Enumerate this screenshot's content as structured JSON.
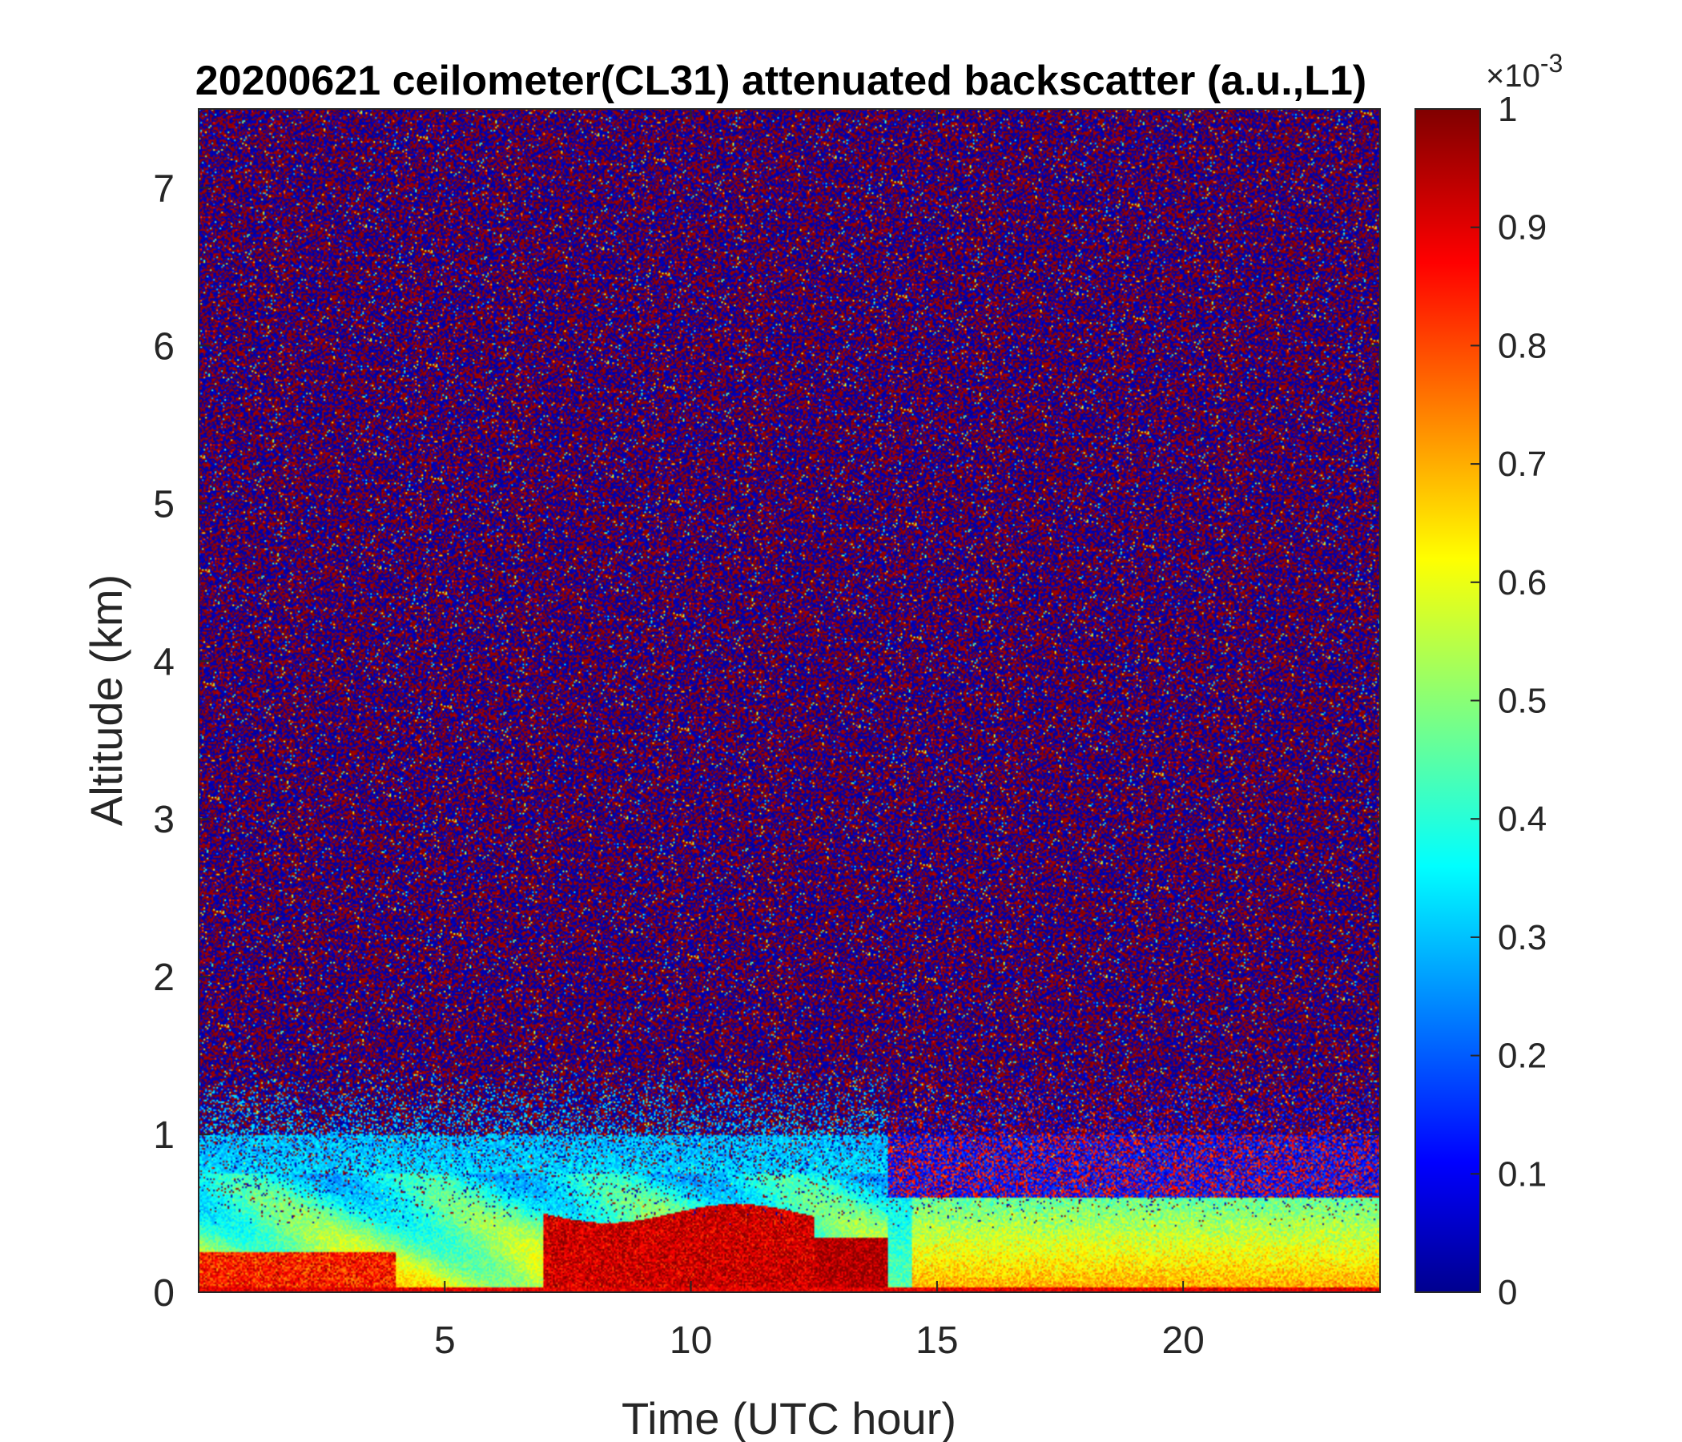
{
  "chart_data": {
    "type": "heatmap",
    "title": "20200621 ceilometer(CL31) attenuated backscatter (a.u.,L1)",
    "xlabel": "Time (UTC hour)",
    "ylabel": "Altitude (km)",
    "xlim": [
      0,
      24
    ],
    "ylim": [
      0,
      7.5
    ],
    "xticks": [
      5,
      10,
      15,
      20
    ],
    "xtick_labels": [
      "5",
      "10",
      "15",
      "20"
    ],
    "yticks": [
      0,
      1,
      2,
      3,
      4,
      5,
      6,
      7
    ],
    "ytick_labels": [
      "0",
      "1",
      "2",
      "3",
      "4",
      "5",
      "6",
      "7"
    ],
    "colorbar": {
      "colormap": "jet",
      "range": [
        0,
        1
      ],
      "multiplier_label": "×10",
      "multiplier_exponent": "-3",
      "ticks": [
        0,
        0.1,
        0.2,
        0.3,
        0.4,
        0.5,
        0.6,
        0.7,
        0.8,
        0.9,
        1
      ],
      "tick_labels": [
        "0",
        "0.1",
        "0.2",
        "0.3",
        "0.4",
        "0.5",
        "0.6",
        "0.7",
        "0.8",
        "0.9",
        "1"
      ]
    },
    "features": [
      {
        "time_start": 0,
        "time_end": 24,
        "altitude_min": 1.5,
        "altitude_max": 7.5,
        "level": "noise"
      },
      {
        "time_start": 0,
        "time_end": 14,
        "altitude_min": 0.0,
        "altitude_max": 0.8,
        "level": 0.45
      },
      {
        "time_start": 7,
        "time_end": 12.5,
        "altitude_min": 0.0,
        "altitude_max": 0.5,
        "level": 1.0
      },
      {
        "time_start": 14.5,
        "time_end": 24,
        "altitude_min": 0.0,
        "altitude_max": 0.6,
        "level": 0.55
      }
    ]
  }
}
